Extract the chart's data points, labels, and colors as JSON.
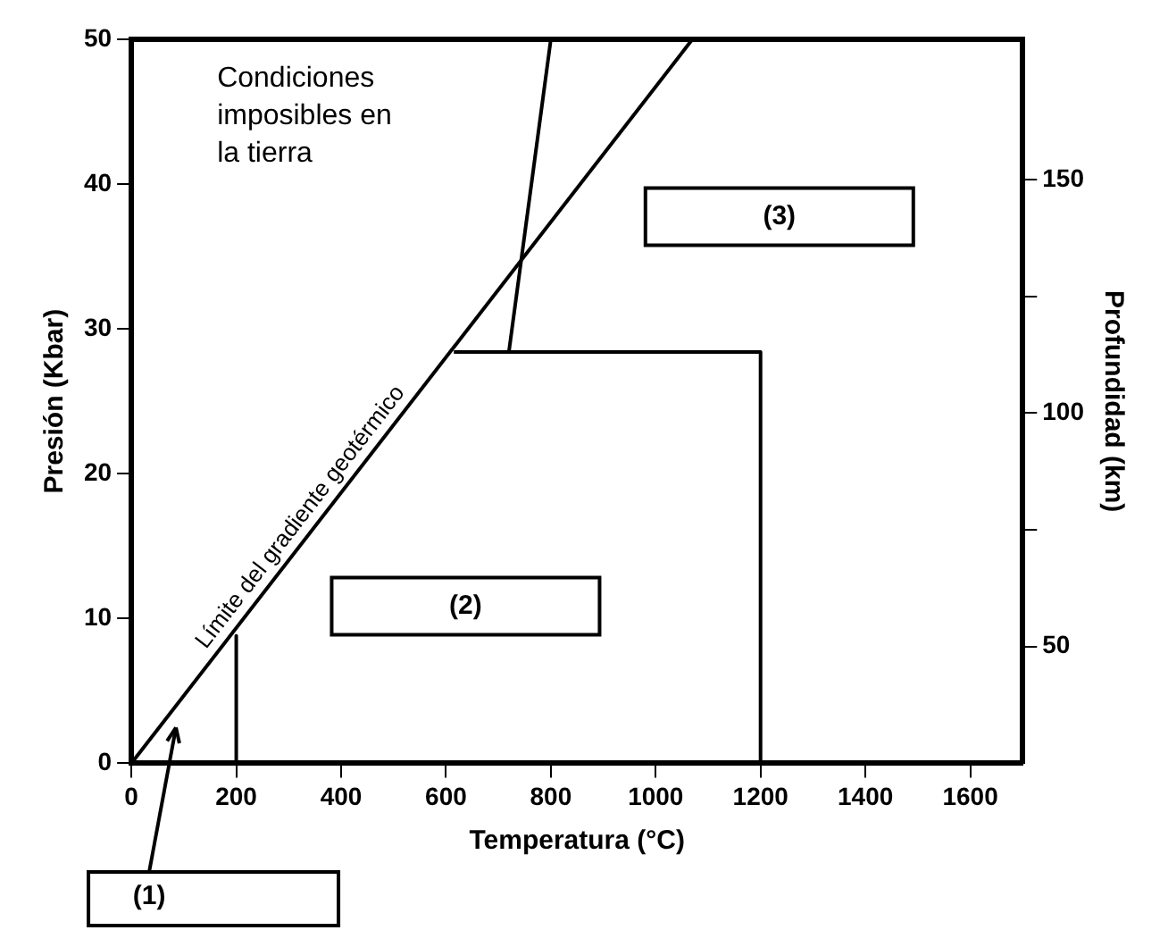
{
  "chart_data": {
    "type": "line",
    "xlabel": "Temperatura (°C)",
    "ylabel": "Presión (Kbar)",
    "y2label": "Profundidad (km)",
    "series": [
      {
        "name": "Límite del gradiente geotérmico",
        "color": "#000000",
        "x": [
          0,
          1070
        ],
        "values": [
          0,
          50
        ]
      },
      {
        "color": "#000000",
        "x": [
          720,
          800
        ],
        "values": [
          28.4,
          50
        ]
      },
      {
        "color": "#000000",
        "x": [
          615,
          1200,
          1200
        ],
        "values": [
          28.4,
          28.4,
          0
        ]
      },
      {
        "color": "#000000",
        "x": [
          200,
          200
        ],
        "values": [
          8.8,
          0
        ]
      }
    ],
    "xlim": [
      0,
      1700
    ],
    "xticks": [
      0,
      200,
      400,
      600,
      800,
      1000,
      1200,
      1400,
      1600
    ],
    "ylim": [
      0,
      50
    ],
    "yticks": [
      0,
      10,
      20,
      30,
      40,
      50
    ],
    "y2lim": [
      25,
      180
    ],
    "y2ticks": [
      50,
      {
        "value": 75,
        "label": null
      },
      100,
      {
        "value": 125,
        "label": null
      },
      150
    ],
    "annotations": [
      "Condiciones imposibles en la tierra",
      "(2)",
      "(3)",
      "(1)"
    ],
    "grid": false,
    "legend": false,
    "marker": "none",
    "line_style": "solid"
  }
}
